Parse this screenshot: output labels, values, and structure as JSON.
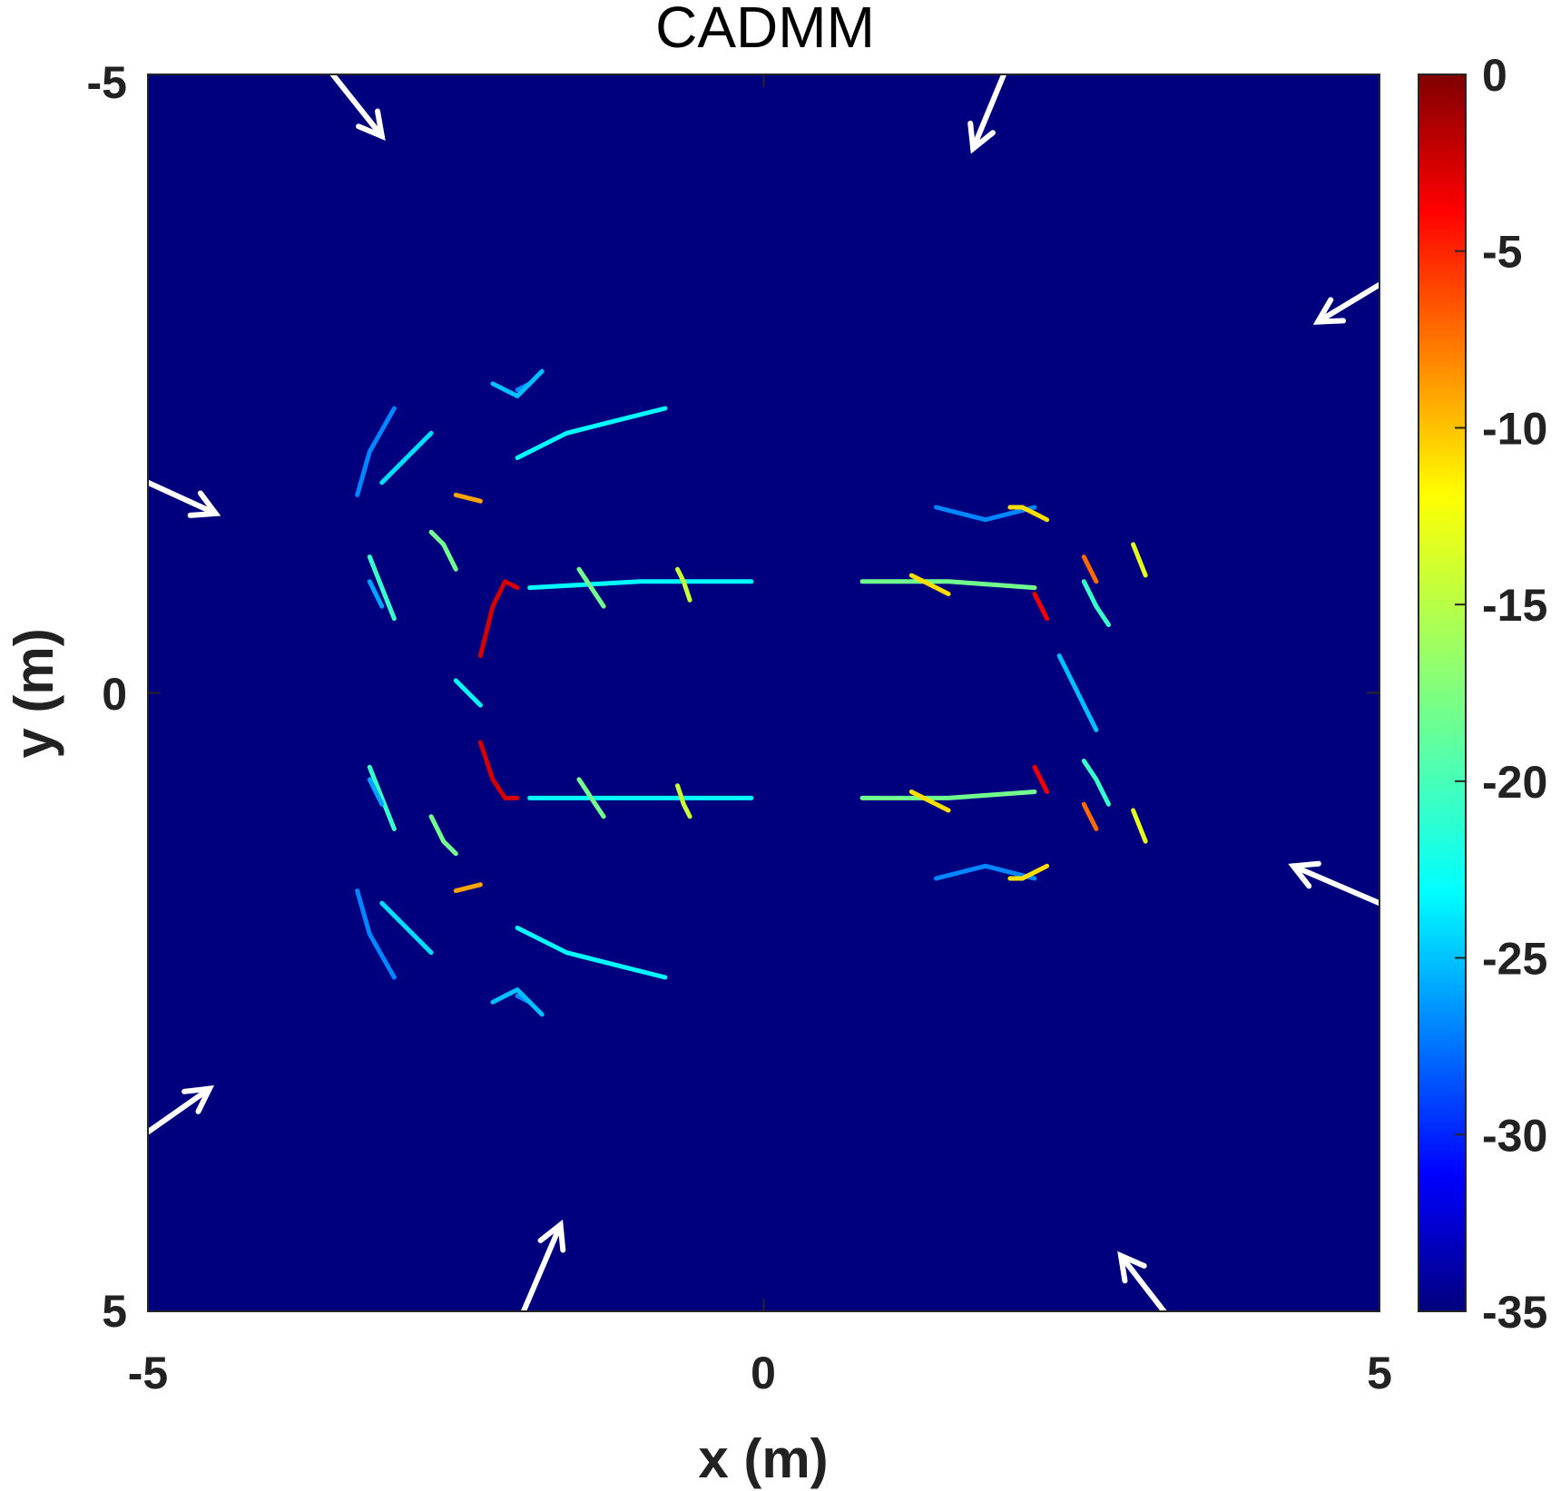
{
  "chart_data": {
    "type": "heatmap",
    "title": "CADMM",
    "xlabel": "x (m)",
    "ylabel": "y (m)",
    "xlim": [
      -5,
      5
    ],
    "ylim": [
      -5,
      5
    ],
    "y_axis_direction": "reversed",
    "x_ticks": [
      "-5",
      "0",
      "5"
    ],
    "y_ticks": [
      "-5",
      "0",
      "5"
    ],
    "colorbar": {
      "colormap": "jet",
      "range": [
        -35,
        0
      ],
      "ticks": [
        "0",
        "-5",
        "-10",
        "-15",
        "-20",
        "-25",
        "-30",
        "-35"
      ],
      "position": "right"
    },
    "background_value": -35,
    "colors": {
      "background": "#00007f",
      "arrows": "#ffffff"
    },
    "arrows": [
      {
        "x_tail": -3.5,
        "y_tail": -5.0,
        "x_head": -3.1,
        "y_head": -4.5
      },
      {
        "x_tail": 1.95,
        "y_tail": -5.0,
        "x_head": 1.7,
        "y_head": -4.4
      },
      {
        "x_tail": 5.0,
        "y_tail": -3.3,
        "x_head": 4.5,
        "y_head": -3.0
      },
      {
        "x_tail": -5.0,
        "y_tail": -1.7,
        "x_head": -4.45,
        "y_head": -1.45
      },
      {
        "x_tail": 5.0,
        "y_tail": 1.7,
        "x_head": 4.3,
        "y_head": 1.4
      },
      {
        "x_tail": -5.0,
        "y_tail": 3.55,
        "x_head": -4.5,
        "y_head": 3.2
      },
      {
        "x_tail": -1.95,
        "y_tail": 5.0,
        "x_head": -1.65,
        "y_head": 4.3
      },
      {
        "x_tail": 3.25,
        "y_tail": 5.0,
        "x_head": 2.9,
        "y_head": 4.55
      }
    ],
    "features": [
      {
        "x": [
          -2.3,
          -2.2,
          -2.1,
          -2.0
        ],
        "y": [
          -0.3,
          -0.7,
          -0.9,
          -0.85
        ],
        "value": -3
      },
      {
        "x": [
          -2.3,
          -2.2,
          -2.1,
          -2.0
        ],
        "y": [
          0.4,
          0.7,
          0.85,
          0.85
        ],
        "value": -3
      },
      {
        "x": [
          -1.9,
          -1.0,
          -0.1
        ],
        "y": [
          -0.85,
          -0.9,
          -0.9
        ],
        "value": -22
      },
      {
        "x": [
          -1.9,
          -1.0,
          -0.1
        ],
        "y": [
          0.85,
          0.85,
          0.85
        ],
        "value": -22
      },
      {
        "x": [
          0.8,
          1.5,
          2.2
        ],
        "y": [
          -0.9,
          -0.9,
          -0.85
        ],
        "value": -18
      },
      {
        "x": [
          0.8,
          1.5,
          2.2
        ],
        "y": [
          0.85,
          0.85,
          0.8
        ],
        "value": -18
      },
      {
        "x": [
          2.2,
          2.25,
          2.3
        ],
        "y": [
          -0.8,
          -0.7,
          -0.6
        ],
        "value": -4
      },
      {
        "x": [
          2.2,
          2.25,
          2.3
        ],
        "y": [
          0.6,
          0.7,
          0.8
        ],
        "value": -4
      },
      {
        "x": [
          2.4,
          2.5,
          2.6,
          2.7
        ],
        "y": [
          -0.3,
          -0.1,
          0.1,
          0.3
        ],
        "value": -24
      },
      {
        "x": [
          -2.5,
          -2.4,
          -2.3
        ],
        "y": [
          -0.1,
          0.0,
          0.1
        ],
        "value": -22
      },
      {
        "x": [
          -3.2,
          -3.1,
          -3.0
        ],
        "y": [
          -1.1,
          -0.85,
          -0.6
        ],
        "value": -20
      },
      {
        "x": [
          -3.2,
          -3.1,
          -3.0
        ],
        "y": [
          0.6,
          0.85,
          1.1
        ],
        "value": -20
      },
      {
        "x": [
          -2.7,
          -2.6,
          -2.5
        ],
        "y": [
          -1.3,
          -1.2,
          -1.0
        ],
        "value": -18
      },
      {
        "x": [
          -2.7,
          -2.6,
          -2.5
        ],
        "y": [
          1.0,
          1.2,
          1.3
        ],
        "value": -18
      },
      {
        "x": [
          -3.1,
          -2.9,
          -2.7
        ],
        "y": [
          -1.7,
          -1.9,
          -2.1
        ],
        "value": -23
      },
      {
        "x": [
          -3.1,
          -2.9,
          -2.7
        ],
        "y": [
          1.7,
          1.9,
          2.1
        ],
        "value": -23
      },
      {
        "x": [
          -2.0,
          -1.6,
          -1.2,
          -0.8
        ],
        "y": [
          -1.9,
          -2.1,
          -2.2,
          -2.3
        ],
        "value": -22
      },
      {
        "x": [
          -2.0,
          -1.6,
          -1.2,
          -0.8
        ],
        "y": [
          1.9,
          2.1,
          2.2,
          2.3
        ],
        "value": -22
      },
      {
        "x": [
          -2.5,
          -2.3
        ],
        "y": [
          -1.6,
          -1.55
        ],
        "value": -10
      },
      {
        "x": [
          -2.5,
          -2.3
        ],
        "y": [
          1.6,
          1.55
        ],
        "value": -10
      },
      {
        "x": [
          -2.0,
          -1.9
        ],
        "y": [
          -2.45,
          -2.5
        ],
        "value": -26
      },
      {
        "x": [
          -2.0,
          -1.9
        ],
        "y": [
          2.45,
          2.5
        ],
        "value": -26
      },
      {
        "x": [
          -2.2,
          -2.1,
          -2.0,
          -1.9,
          -1.8
        ],
        "y": [
          -2.5,
          -2.45,
          -2.4,
          -2.5,
          -2.6
        ],
        "value": -24
      },
      {
        "x": [
          -2.2,
          -2.1,
          -2.0,
          -1.9,
          -1.8
        ],
        "y": [
          2.5,
          2.45,
          2.4,
          2.5,
          2.6
        ],
        "value": -24
      },
      {
        "x": [
          -3.3,
          -3.2,
          -3.0
        ],
        "y": [
          -1.6,
          -1.95,
          -2.3
        ],
        "value": -26
      },
      {
        "x": [
          -3.3,
          -3.2,
          -3.0
        ],
        "y": [
          1.6,
          1.95,
          2.3
        ],
        "value": -26
      },
      {
        "x": [
          -3.2,
          -3.1
        ],
        "y": [
          -0.9,
          -0.7
        ],
        "value": -25
      },
      {
        "x": [
          -3.2,
          -3.1
        ],
        "y": [
          0.7,
          0.9
        ],
        "value": -25
      },
      {
        "x": [
          1.4,
          1.8,
          2.2
        ],
        "y": [
          -1.5,
          -1.4,
          -1.5
        ],
        "value": -26
      },
      {
        "x": [
          1.4,
          1.8,
          2.2
        ],
        "y": [
          1.5,
          1.4,
          1.5
        ],
        "value": -26
      },
      {
        "x": [
          2.0,
          2.1,
          2.3
        ],
        "y": [
          -1.5,
          -1.5,
          -1.4
        ],
        "value": -12
      },
      {
        "x": [
          2.0,
          2.1,
          2.3
        ],
        "y": [
          1.5,
          1.5,
          1.4
        ],
        "value": -12
      },
      {
        "x": [
          3.0,
          3.1
        ],
        "y": [
          -1.2,
          -0.95
        ],
        "value": -14
      },
      {
        "x": [
          3.0,
          3.1
        ],
        "y": [
          0.95,
          1.2
        ],
        "value": -14
      },
      {
        "x": [
          2.6,
          2.7
        ],
        "y": [
          -1.1,
          -0.9
        ],
        "value": -8
      },
      {
        "x": [
          2.6,
          2.7
        ],
        "y": [
          0.9,
          1.1
        ],
        "value": -8
      },
      {
        "x": [
          2.6,
          2.7,
          2.8
        ],
        "y": [
          -0.9,
          -0.7,
          -0.55
        ],
        "value": -20
      },
      {
        "x": [
          2.6,
          2.7,
          2.8
        ],
        "y": [
          0.55,
          0.7,
          0.9
        ],
        "value": -20
      },
      {
        "x": [
          1.2,
          1.3,
          1.4,
          1.5
        ],
        "y": [
          -0.95,
          -0.9,
          -0.85,
          -0.8
        ],
        "value": -12
      },
      {
        "x": [
          1.2,
          1.3,
          1.4,
          1.5
        ],
        "y": [
          0.8,
          0.85,
          0.9,
          0.95
        ],
        "value": -12
      },
      {
        "x": [
          -1.5,
          -1.4,
          -1.3
        ],
        "y": [
          -1.0,
          -0.85,
          -0.7
        ],
        "value": -18
      },
      {
        "x": [
          -1.5,
          -1.4,
          -1.3
        ],
        "y": [
          0.7,
          0.85,
          1.0
        ],
        "value": -18
      },
      {
        "x": [
          -0.7,
          -0.65,
          -0.6
        ],
        "y": [
          -1.0,
          -0.9,
          -0.75
        ],
        "value": -15
      },
      {
        "x": [
          -0.7,
          -0.65,
          -0.6
        ],
        "y": [
          0.75,
          0.9,
          1.0
        ],
        "value": -15
      }
    ]
  }
}
